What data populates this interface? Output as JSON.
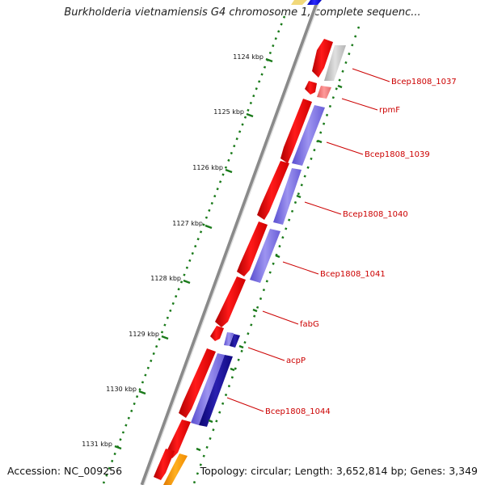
{
  "title": "Burkholderia vietnamiensis G4 chromosome 1, complete sequenc...",
  "footer": {
    "accession": "Accession: NC_009256",
    "topology": "Topology: circular; Length: 3,652,814 bp; Genes: 3,349"
  },
  "ticks": [
    "1124 kbp",
    "1125 kbp",
    "1126 kbp",
    "1127 kbp",
    "1128 kbp",
    "1129 kbp",
    "1130 kbp",
    "1131 kbp"
  ],
  "genes": [
    "Bcep1808_1037",
    "rpmF",
    "Bcep1808_1039",
    "Bcep1808_1040",
    "Bcep1808_1041",
    "fabG",
    "acpP",
    "Bcep1808_1044"
  ],
  "colors": {
    "cds": "#ee0000",
    "blastp_light": "#7b6fe0",
    "blastp_dark": "#140a8c",
    "blastp_gray": "#c0c0c0",
    "backbone": "#8a8a8a",
    "tick": "#1a7a1a",
    "label": "#cc0000",
    "orange": "#ff9900"
  }
}
